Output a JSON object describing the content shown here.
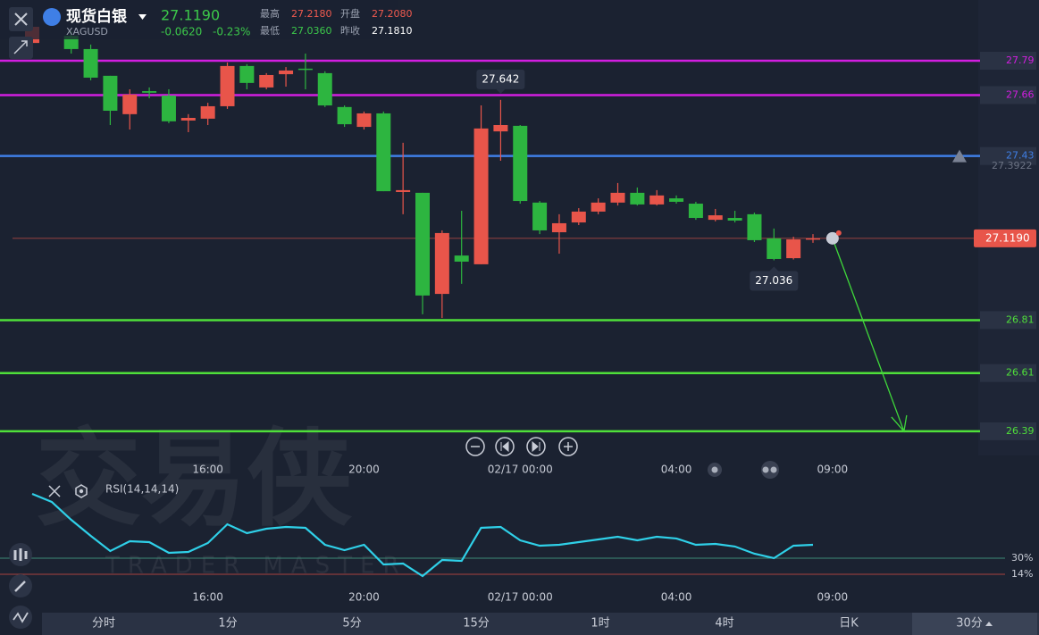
{
  "header": {
    "title": "现货白银",
    "symbol": "XAGUSD",
    "price": "27.1190",
    "change": "-0.0620",
    "change_pct": "-0.23%",
    "color": "#3cc84a",
    "stats": [
      {
        "label": "最高",
        "value": "27.2180",
        "color": "#f05a4f"
      },
      {
        "label": "开盘",
        "value": "27.2080",
        "color": "#f05a4f"
      },
      {
        "label": "最低",
        "value": "27.0360",
        "color": "#3cc84a"
      },
      {
        "label": "昨收",
        "value": "27.1810",
        "color": "#ffffff"
      }
    ]
  },
  "watermark": {
    "title": "交易侠",
    "subtitle": "TRADER MASTER"
  },
  "chart_data": [
    {
      "type": "candlestick",
      "categories": [
        null,
        null,
        null,
        null,
        null,
        null,
        null,
        null,
        null,
        "16:00",
        null,
        null,
        null,
        null,
        null,
        null,
        null,
        "20:00",
        null,
        null,
        null,
        null,
        null,
        null,
        null,
        "02/17 00:00",
        null,
        null,
        null,
        null,
        null,
        null,
        null,
        "04:00",
        null,
        null,
        null,
        null,
        null,
        null,
        null,
        "09:00"
      ],
      "open": [
        27.857,
        null,
        27.884,
        27.834,
        27.733,
        27.588,
        27.675,
        27.658,
        27.564,
        27.571,
        27.618,
        27.77,
        27.689,
        27.739,
        27.76,
        27.743,
        27.615,
        27.54,
        27.591,
        27.294,
        27.291,
        26.909,
        27.054,
        27.021,
        27.523,
        27.544,
        27.254,
        27.142,
        27.179,
        27.22,
        27.254,
        27.291,
        27.247,
        27.27,
        27.25,
        27.189,
        27.196,
        27.21,
        27.119,
        27.044,
        27.115,
        null
      ],
      "high": [
        27.925,
        null,
        27.901,
        27.851,
        27.733,
        27.682,
        27.689,
        27.682,
        27.588,
        27.631,
        27.783,
        27.777,
        27.743,
        27.766,
        27.817,
        27.75,
        27.621,
        27.598,
        27.598,
        27.48,
        27.291,
        27.149,
        27.223,
        27.621,
        27.642,
        27.547,
        27.26,
        27.21,
        27.233,
        27.27,
        27.328,
        27.311,
        27.301,
        27.281,
        27.257,
        27.23,
        27.223,
        27.216,
        27.156,
        27.125,
        27.135,
        null
      ],
      "low": [
        27.851,
        null,
        27.817,
        27.716,
        27.547,
        27.53,
        27.648,
        27.554,
        27.52,
        27.547,
        27.608,
        27.682,
        27.682,
        27.692,
        27.682,
        27.615,
        27.54,
        27.53,
        27.297,
        27.21,
        26.832,
        26.818,
        26.947,
        27.021,
        27.412,
        27.25,
        27.135,
        27.061,
        27.169,
        27.21,
        27.243,
        27.243,
        27.243,
        27.25,
        27.189,
        27.183,
        27.179,
        27.105,
        27.036,
        27.039,
        27.102,
        null
      ],
      "close": [
        27.918,
        null,
        27.834,
        27.726,
        27.601,
        27.662,
        27.669,
        27.561,
        27.574,
        27.618,
        27.77,
        27.706,
        27.736,
        27.753,
        27.756,
        27.621,
        27.55,
        27.591,
        27.297,
        27.301,
        26.903,
        27.139,
        27.031,
        27.534,
        27.547,
        27.26,
        27.149,
        27.176,
        27.22,
        27.254,
        27.291,
        27.247,
        27.281,
        27.257,
        27.196,
        27.206,
        27.186,
        27.112,
        27.041,
        27.115,
        27.119,
        null
      ],
      "up_color": "#e8554a",
      "down_color": "#2db540",
      "ylim": [
        26.3,
        28.02
      ],
      "levels": [
        {
          "value": 27.79,
          "color": "#d21ee0"
        },
        {
          "value": 27.66,
          "color": "#d21ee0"
        },
        {
          "value": 27.43,
          "color": "#3f7fe6"
        },
        {
          "value": 26.81,
          "color": "#4fe03a"
        },
        {
          "value": 26.61,
          "color": "#4fe03a"
        },
        {
          "value": 26.39,
          "color": "#4fe03a"
        }
      ],
      "current": {
        "value": 27.119,
        "label": "27.1190",
        "color": "#e8554a"
      },
      "secondary_price": 27.3922,
      "annotations": [
        {
          "value": 27.642
        },
        {
          "value": 27.036
        }
      ]
    },
    {
      "type": "line",
      "name": "RSI(14,14,14)",
      "color": "#2fd0e8",
      "values": [
        94.0,
        86.0,
        68.2,
        52.2,
        37.1,
        46.9,
        46.0,
        35.3,
        36.2,
        45.1,
        63.8,
        54.9,
        59.3,
        61.1,
        60.2,
        43.3,
        38.0,
        43.3,
        23.8,
        24.7,
        12.2,
        28.2,
        27.3,
        60.2,
        61.1,
        47.8,
        42.4,
        43.3,
        46.0,
        48.7,
        51.3,
        47.8,
        51.3,
        49.6,
        43.3,
        44.2,
        41.6,
        34.4,
        30.0,
        42.4,
        43.3,
        null
      ],
      "ylim": [
        8,
        105
      ],
      "yticks": [
        {
          "value": 30,
          "label": "30%"
        },
        {
          "value": 14,
          "label": "14%"
        }
      ],
      "ytick_colors": [
        "#3e8a78",
        "#a8433f"
      ]
    }
  ],
  "tabs": [
    "分时",
    "1分",
    "5分",
    "15分",
    "1时",
    "4时",
    "日K",
    "30分"
  ],
  "selected_tab": 7
}
